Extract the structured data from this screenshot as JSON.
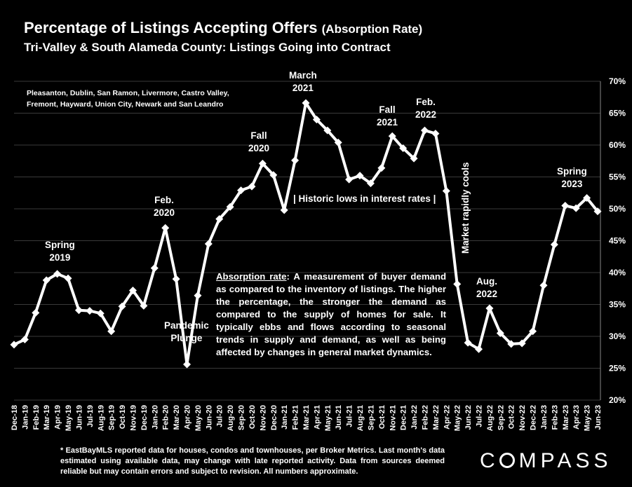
{
  "header": {
    "title_main": "Percentage of Listings Accepting Offers",
    "title_paren": "(Absorption Rate)",
    "subtitle": "Tri-Valley & South Alameda County: Listings Going into Contract"
  },
  "cities_note": "Pleasanton, Dublin, San Ramon, Livermore, Castro Valley, Fremont, Hayward, Union City, Newark and San Leandro",
  "definition": {
    "term": "Absorption rate",
    "text": ":  A measurement of buyer demand as compared to the inventory of listings. The higher the percentage, the stronger the demand as compared to the supply of homes for sale. It typically ebbs and flows according to seasonal trends in supply and demand, as well as being affected by changes in general market dynamics."
  },
  "annotations": {
    "spring2019": [
      "Spring",
      "2019"
    ],
    "feb2020": [
      "Feb.",
      "2020"
    ],
    "pandemic": [
      "Pandemic",
      "Plunge"
    ],
    "fall2020": [
      "Fall",
      "2020"
    ],
    "march2021": [
      "March",
      "2021"
    ],
    "fall2021": [
      "Fall",
      "2021"
    ],
    "feb2022": [
      "Feb.",
      "2022"
    ],
    "historic": "| Historic lows in interest rates |",
    "market_cools": "Market rapidly cools",
    "aug2022": [
      "Aug.",
      "2022"
    ],
    "spring2023": [
      "Spring",
      "2023"
    ]
  },
  "footnote": "* EastBayMLS reported data for houses, condos and townhouses, per Broker Metrics. Last month's data estimated using available data, may change with late reported activity. Data from sources deemed reliable but may contain errors and subject to revision. All numbers approximate.",
  "logo": {
    "pre": "C",
    "post": "MPASS"
  },
  "chart_data": {
    "type": "line",
    "categories": [
      "Dec-18",
      "Jan-19",
      "Feb-19",
      "Mar-19",
      "Apr-19",
      "May-19",
      "Jun-19",
      "Jul-19",
      "Aug-19",
      "Sep-19",
      "Oct-19",
      "Nov-19",
      "Dec-19",
      "Jan-20",
      "Feb-20",
      "Mar-20",
      "Apr-20",
      "May-20",
      "Jun-20",
      "Jul-20",
      "Aug-20",
      "Sep-20",
      "Oct-20",
      "Nov-20",
      "Dec-20",
      "Jan-21",
      "Feb-21",
      "Mar-21",
      "Apr-21",
      "May-21",
      "Jun-21",
      "Jul-21",
      "Aug-21",
      "Sep-21",
      "Oct-21",
      "Nov-21",
      "Dec-21",
      "Jan-22",
      "Feb-22",
      "Mar-22",
      "Apr-22",
      "May-22",
      "Jun-22",
      "Jul-22",
      "Aug-22",
      "Sep-22",
      "Oct-22",
      "Nov-22",
      "Dec-22",
      "Jan-23",
      "Feb-23",
      "Mar-23",
      "Apr-23",
      "May-23",
      "Jun-23"
    ],
    "x_tick_labels": [
      "Dec-18",
      "Jan-19",
      "Feb-19",
      "Mar-19",
      "Apr-19",
      "May-19",
      "Jun-19",
      "Jul-19",
      "Aug-19",
      "Sep-19",
      "Oct-19",
      "Nov-19",
      "Dec-19",
      "Jan-20",
      "Feb-20",
      "Mar-20",
      "Apr-20",
      "May-20",
      "Jun-20",
      "Jul-20",
      "Aug-20",
      "Sep-20",
      "Oct-20",
      "Nov-20",
      "Dec-20",
      "Jan-21",
      "Feb-21",
      "Mar-21",
      "Apr-21",
      "May-21",
      "Jun-21",
      "Jul-21",
      "Aug-21",
      "Sep-21",
      "Oct-21",
      "Nov-21",
      "Dec-21",
      "Jan-22",
      "Feb-22",
      "Mar-22",
      "Apr-22",
      "May-22",
      "Jun-22",
      "Jul-22",
      "Aug-22",
      "Sep-22",
      "Oct-22",
      "Nov-22",
      "Dec-22",
      "Jan-23",
      "Feb-23",
      "Mar-23",
      "Apr-23",
      "May-23",
      "Jun-23"
    ],
    "values": [
      28.7,
      29.5,
      33.7,
      38.8,
      39.8,
      39.1,
      34.1,
      34.0,
      33.6,
      30.8,
      34.7,
      37.2,
      34.8,
      40.7,
      47.0,
      39.0,
      25.6,
      36.4,
      44.5,
      48.4,
      50.3,
      52.9,
      53.5,
      57.1,
      55.3,
      49.8,
      57.6,
      66.6,
      64.0,
      62.3,
      60.4,
      54.6,
      55.2,
      54.0,
      56.4,
      61.4,
      59.5,
      57.9,
      62.3,
      61.8,
      52.8,
      38.2,
      29.0,
      28.0,
      34.4,
      30.5,
      28.8,
      28.9,
      30.8,
      38.0,
      44.4,
      50.5,
      50.1,
      51.7,
      49.6
    ],
    "yticks": [
      "20%",
      "25%",
      "30%",
      "35%",
      "40%",
      "45%",
      "50%",
      "55%",
      "60%",
      "65%",
      "70%"
    ],
    "ylim": [
      20,
      70
    ],
    "grid": true,
    "line_color": "#ffffff"
  }
}
